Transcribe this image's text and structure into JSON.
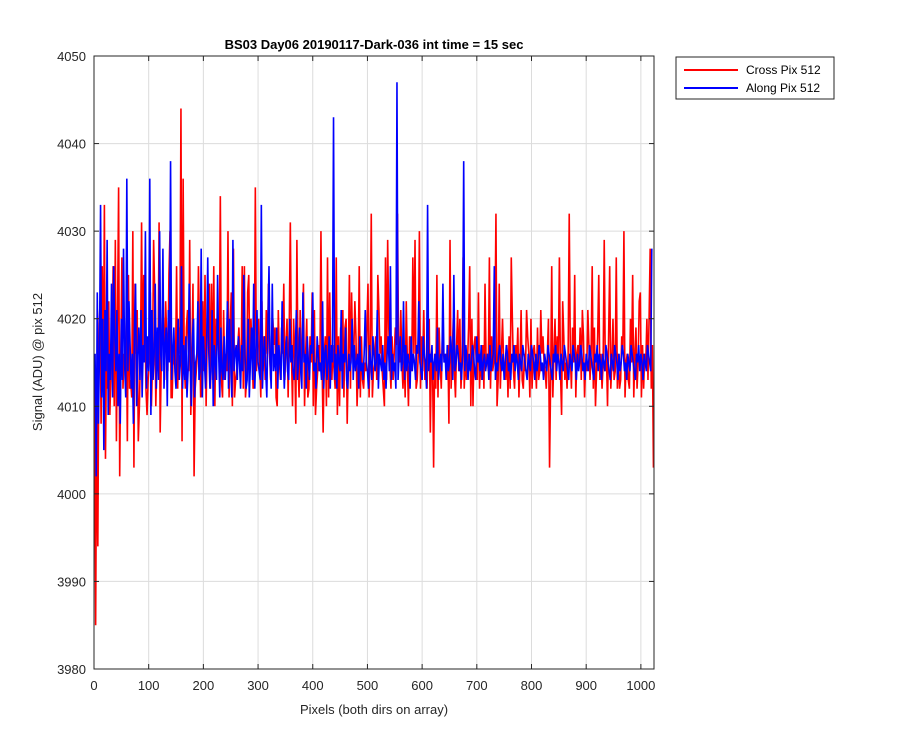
{
  "chart_data": {
    "type": "line",
    "title": "BS03 Day06 20190117-Dark-036 int time = 15 sec",
    "xlabel": "Pixels (both dirs on array)",
    "ylabel": "Signal (ADU) @ pix 512",
    "xlim": [
      0,
      1024
    ],
    "ylim": [
      3980,
      4050
    ],
    "xticks": [
      0,
      100,
      200,
      300,
      400,
      500,
      600,
      700,
      800,
      900,
      1000
    ],
    "yticks": [
      3980,
      3990,
      4000,
      4010,
      4020,
      4030,
      4040,
      4050
    ],
    "grid": true,
    "legend_position": "outside-top-right",
    "series": [
      {
        "name": "Cross Pix 512",
        "color": "#ff0000",
        "x_start": 1,
        "x_step": 2,
        "values": [
          4015,
          3985,
          4010,
          3994,
          4018,
          4022,
          4008,
          4026,
          4012,
          4033,
          4004,
          4018,
          4012,
          4022,
          4009,
          4014,
          4016,
          4026,
          4010,
          4029,
          4006,
          4020,
          4035,
          4002,
          4016,
          4027,
          4012,
          4016,
          4014,
          4020,
          4006,
          4025,
          4012,
          4013,
          4011,
          4030,
          4003,
          4024,
          4016,
          4021,
          4006,
          4010,
          4016,
          4031,
          4015,
          4025,
          4021,
          4012,
          4009,
          4013,
          4015,
          4023,
          4010,
          4015,
          4029,
          4023,
          4010,
          4016,
          4014,
          4031,
          4007,
          4015,
          4021,
          4020,
          4013,
          4022,
          4018,
          4014,
          4025,
          4030,
          4011,
          4011,
          4017,
          4015,
          4014,
          4026,
          4012,
          4019,
          4016,
          4044,
          4006,
          4036,
          4015,
          4012,
          4019,
          4021,
          4014,
          4029,
          4009,
          4016,
          4024,
          4002,
          4012,
          4014,
          4016,
          4026,
          4018,
          4011,
          4016,
          4022,
          4014,
          4025,
          4010,
          4018,
          4019,
          4024,
          4012,
          4024,
          4013,
          4026,
          4010,
          4020,
          4017,
          4018,
          4015,
          4034,
          4013,
          4011,
          4021,
          4013,
          4016,
          4014,
          4030,
          4011,
          4019,
          4023,
          4010,
          4028,
          4011,
          4013,
          4014,
          4017,
          4019,
          4015,
          4014,
          4026,
          4012,
          4026,
          4011,
          4013,
          4023,
          4025,
          4014,
          4020,
          4016,
          4012,
          4013,
          4035,
          4014,
          4019,
          4020,
          4015,
          4011,
          4022,
          4014,
          4018,
          4013,
          4021,
          4016,
          4024,
          4016,
          4013,
          4018,
          4020,
          4017,
          4019,
          4011,
          4010,
          4021,
          4015,
          4013,
          4019,
          4016,
          4024,
          4013,
          4017,
          4020,
          4011,
          4019,
          4031,
          4016,
          4010,
          4020,
          4016,
          4008,
          4029,
          4015,
          4011,
          4021,
          4014,
          4017,
          4024,
          4010,
          4016,
          4020,
          4011,
          4012,
          4018,
          4015,
          4023,
          4010,
          4021,
          4009,
          4012,
          4014,
          4017,
          4014,
          4030,
          4015,
          4007,
          4016,
          4018,
          4010,
          4027,
          4011,
          4023,
          4015,
          4013,
          4017,
          4014,
          4012,
          4027,
          4009,
          4018,
          4010,
          4019,
          4014,
          4021,
          4011,
          4019,
          4020,
          4008,
          4015,
          4025,
          4012,
          4023,
          4016,
          4016,
          4022,
          4018,
          4010,
          4014,
          4026,
          4011,
          4018,
          4013,
          4012,
          4015,
          4014,
          4019,
          4024,
          4011,
          4017,
          4032,
          4011,
          4014,
          4015,
          4018,
          4013,
          4025,
          4021,
          4016,
          4018,
          4014,
          4012,
          4010,
          4027,
          4013,
          4029,
          4019,
          4015,
          4012,
          4018,
          4013,
          4016,
          4019,
          4017,
          4032,
          4016,
          4015,
          4021,
          4015,
          4012,
          4016,
          4011,
          4022,
          4015,
          4010,
          4018,
          4017,
          4014,
          4027,
          4016,
          4029,
          4012,
          4013,
          4016,
          4030,
          4012,
          4018,
          4014,
          4021,
          4013,
          4015,
          4012,
          4018,
          4020,
          4007,
          4016,
          4015,
          4003,
          4016,
          4012,
          4025,
          4011,
          4019,
          4015,
          4012,
          4018,
          4016,
          4015,
          4016,
          4013,
          4017,
          4008,
          4029,
          4012,
          4016,
          4020,
          4014,
          4011,
          4017,
          4021,
          4014,
          4020,
          4012,
          4015,
          4027,
          4012,
          4016,
          4013,
          4015,
          4019,
          4026,
          4010,
          4020,
          4010,
          4017,
          4018,
          4015,
          4013,
          4023,
          4012,
          4016,
          4013,
          4017,
          4012,
          4024,
          4015,
          4016,
          4014,
          4027,
          4012,
          4018,
          4014,
          4015,
          4018,
          4032,
          4010,
          4013,
          4024,
          4012,
          4016,
          4020,
          4015,
          4015,
          4013,
          4017,
          4011,
          4018,
          4012,
          4027,
          4020,
          4014,
          4012,
          4017,
          4015,
          4019,
          4011,
          4015,
          4021,
          4013,
          4012,
          4016,
          4014,
          4021,
          4018,
          4016,
          4011,
          4020,
          4012,
          4016,
          4017,
          4015,
          4012,
          4019,
          4013,
          4014,
          4021,
          4016,
          4018,
          4015,
          4014,
          4012,
          4016,
          4020,
          4003,
          4013,
          4026,
          4011,
          4016,
          4020,
          4013,
          4018,
          4015,
          4027,
          4014,
          4009,
          4022,
          4018,
          4013,
          4015,
          4012,
          4016,
          4032,
          4016,
          4012,
          4019,
          4015,
          4025,
          4011,
          4016,
          4017,
          4015,
          4019,
          4013,
          4021,
          4018,
          4011,
          4015,
          4014,
          4021,
          4017,
          4013,
          4016,
          4026,
          4012,
          4019,
          4010,
          4014,
          4018,
          4025,
          4013,
          4016,
          4012,
          4015,
          4029,
          4014,
          4016,
          4010,
          4018,
          4026,
          4012,
          4015,
          4020,
          4013,
          4014,
          4027,
          4012,
          4016,
          4012,
          4013,
          4018,
          4016,
          4030,
          4011,
          4015,
          4016,
          4013,
          4012,
          4020,
          4015,
          4025,
          4011,
          4016,
          4019,
          4012,
          4015,
          4022,
          4023,
          4011,
          4017,
          4012,
          4016,
          4015,
          4020,
          4013,
          4020,
          4028,
          4012,
          4017,
          4003
        ]
      },
      {
        "name": "Along Pix 512",
        "color": "#0000ff",
        "x_start": 2,
        "x_step": 2,
        "values": [
          4016,
          4002,
          4023,
          4008,
          4016,
          4033,
          4011,
          4020,
          4005,
          4021,
          4014,
          4029,
          4009,
          4016,
          4013,
          4024,
          4011,
          4026,
          4018,
          4014,
          4021,
          4010,
          4016,
          4008,
          4020,
          4013,
          4028,
          4015,
          4011,
          4036,
          4014,
          4022,
          4017,
          4012,
          4016,
          4008,
          4019,
          4024,
          4010,
          4016,
          4019,
          4013,
          4021,
          4011,
          4017,
          4015,
          4030,
          4012,
          4018,
          4014,
          4036,
          4009,
          4021,
          4013,
          4016,
          4024,
          4012,
          4019,
          4013,
          4030,
          4016,
          4014,
          4028,
          4012,
          4017,
          4019,
          4010,
          4021,
          4015,
          4038,
          4013,
          4016,
          4019,
          4014,
          4012,
          4016,
          4020,
          4013,
          4015,
          4026,
          4012,
          4017,
          4013,
          4018,
          4011,
          4014,
          4024,
          4015,
          4010,
          4018,
          4020,
          4011,
          4015,
          4016,
          4022,
          4013,
          4014,
          4028,
          4011,
          4018,
          4015,
          4012,
          4017,
          4027,
          4016,
          4012,
          4014,
          4021,
          4010,
          4017,
          4015,
          4013,
          4025,
          4016,
          4011,
          4019,
          4014,
          4013,
          4018,
          4013,
          4016,
          4022,
          4012,
          4020,
          4015,
          4011,
          4029,
          4014,
          4016,
          4017,
          4013,
          4018,
          4015,
          4012,
          4017,
          4014,
          4025,
          4016,
          4012,
          4013,
          4020,
          4011,
          4015,
          4019,
          4013,
          4024,
          4012,
          4016,
          4021,
          4015,
          4014,
          4013,
          4033,
          4012,
          4016,
          4018,
          4014,
          4011,
          4019,
          4026,
          4015,
          4012,
          4024,
          4014,
          4016,
          4014,
          4019,
          4012,
          4017,
          4015,
          4013,
          4022,
          4016,
          4012,
          4016,
          4018,
          4014,
          4013,
          4020,
          4015,
          4017,
          4014,
          4013,
          4016,
          4021,
          4013,
          4015,
          4019,
          4014,
          4012,
          4023,
          4015,
          4016,
          4012,
          4018,
          4015,
          4013,
          4017,
          4016,
          4023,
          4014,
          4015,
          4012,
          4018,
          4016,
          4014,
          4015,
          4013,
          4022,
          4012,
          4016,
          4017,
          4013,
          4015,
          4018,
          4012,
          4017,
          4015,
          4043,
          4013,
          4016,
          4012,
          4017,
          4015,
          4014,
          4021,
          4012,
          4016,
          4015,
          4019,
          4013,
          4012,
          4016,
          4014,
          4015,
          4020,
          4013,
          4017,
          4014,
          4015,
          4016,
          4012,
          4018,
          4014,
          4015,
          4013,
          4016,
          4021,
          4015,
          4014,
          4012,
          4017,
          4015,
          4013,
          4018,
          4016,
          4014,
          4015,
          4021,
          4012,
          4016,
          4015,
          4014,
          4017,
          4013,
          4015,
          4012,
          4016,
          4018,
          4014,
          4026,
          4013,
          4016,
          4014,
          4015,
          4012,
          4047,
          4013,
          4016,
          4018,
          4014,
          4015,
          4022,
          4013,
          4017,
          4014,
          4016,
          4015,
          4012,
          4018,
          4014,
          4016,
          4015,
          4013,
          4017,
          4016,
          4022,
          4015,
          4014,
          4013,
          4018,
          4016,
          4015,
          4012,
          4033,
          4014,
          4016,
          4015,
          4017,
          4013,
          4015,
          4016,
          4014,
          4019,
          4013,
          4015,
          4016,
          4014,
          4024,
          4015,
          4016,
          4013,
          4017,
          4014,
          4015,
          4018,
          4016,
          4013,
          4025,
          4014,
          4015,
          4017,
          4016,
          4014,
          4015,
          4013,
          4016,
          4038,
          4014,
          4017,
          4015,
          4013,
          4016,
          4014,
          4015,
          4017,
          4016,
          4014,
          4013,
          4018,
          4015,
          4016,
          4014,
          4017,
          4013,
          4015,
          4016,
          4014,
          4015,
          4016,
          4013,
          4017,
          4014,
          4015,
          4016,
          4026,
          4013,
          4015,
          4014,
          4016,
          4017,
          4015,
          4014,
          4016,
          4013,
          4015,
          4017,
          4016,
          4014,
          4015,
          4013,
          4016,
          4015,
          4017,
          4014,
          4016,
          4015,
          4013,
          4016,
          4015,
          4014,
          4017,
          4016,
          4015,
          4014,
          4013,
          4016,
          4015,
          4014,
          4017,
          4016,
          4015,
          4013,
          4016,
          4014,
          4015,
          4017,
          4016,
          4014,
          4015,
          4013,
          4016,
          4015,
          4014,
          4017,
          4016,
          4015,
          4014,
          4013,
          4016,
          4015,
          4017,
          4014,
          4016,
          4015,
          4013,
          4016,
          4015,
          4014,
          4017,
          4016,
          4015,
          4014,
          4013,
          4016,
          4015,
          4014,
          4017,
          4016,
          4015,
          4013,
          4016,
          4014,
          4015,
          4017,
          4016,
          4014,
          4015,
          4013,
          4016,
          4015,
          4014,
          4017,
          4016,
          4015,
          4014,
          4013,
          4016,
          4015,
          4017,
          4014,
          4016,
          4015,
          4013,
          4016,
          4015,
          4014,
          4017,
          4016,
          4015,
          4014,
          4013,
          4016,
          4015,
          4014,
          4017,
          4016,
          4015,
          4013,
          4016,
          4014,
          4015,
          4017,
          4016,
          4014,
          4015,
          4013,
          4016,
          4015,
          4014,
          4017,
          4016,
          4015,
          4014,
          4013,
          4016,
          4015,
          4017,
          4014,
          4016,
          4015,
          4013,
          4016,
          4015,
          4014,
          4017,
          4016,
          4015,
          4014,
          4028
        ]
      }
    ]
  }
}
